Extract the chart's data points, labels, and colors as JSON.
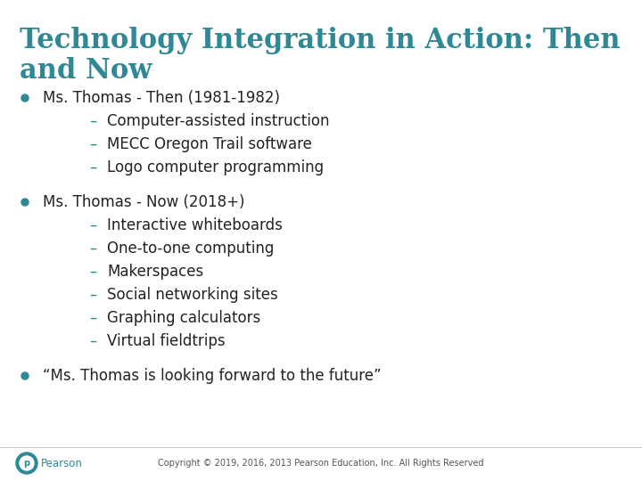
{
  "title_line1": "Technology Integration in Action: Then",
  "title_line2": "and Now",
  "title_color": "#2E8896",
  "background_color": "#FFFFFF",
  "bullet_color": "#2E8896",
  "text_color": "#222222",
  "dash_color": "#2E8896",
  "title_fontsize": 22,
  "body_fontsize": 12,
  "sub_fontsize": 12,
  "bullet1_header": "Ms. Thomas - Then (1981-1982)",
  "bullet1_subitems": [
    "Computer-assisted instruction",
    "MECC Oregon Trail software",
    "Logo computer programming"
  ],
  "bullet2_header": "Ms. Thomas - Now (2018+)",
  "bullet2_subitems": [
    "Interactive whiteboards",
    "One-to-one computing",
    "Makerspaces",
    "Social networking sites",
    "Graphing calculators",
    "Virtual fieldtrips"
  ],
  "bullet3_text": "“Ms. Thomas is looking forward to the future”",
  "footer_text": "Copyright © 2019, 2016, 2013 Pearson Education, Inc. All Rights Reserved",
  "footer_color": "#555555",
  "pearson_text": "Pearson",
  "pearson_color": "#2E8896",
  "dash_char": "–"
}
